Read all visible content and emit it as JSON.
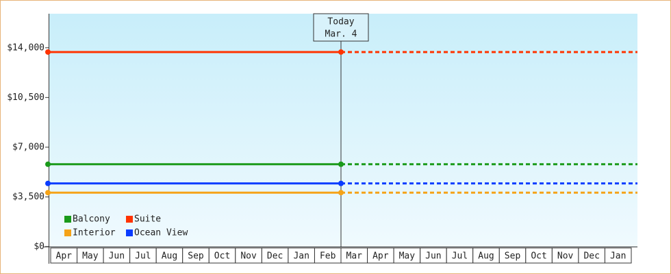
{
  "chart_data": {
    "type": "line",
    "categories": [
      "Apr",
      "May",
      "Jun",
      "Jul",
      "Aug",
      "Sep",
      "Oct",
      "Nov",
      "Dec",
      "Jan",
      "Feb",
      "Mar",
      "Apr",
      "May",
      "Jun",
      "Jul",
      "Aug",
      "Sep",
      "Oct",
      "Nov",
      "Dec",
      "Jan"
    ],
    "series": [
      {
        "name": "Balcony",
        "color": "#1a9a1a",
        "value": 5800
      },
      {
        "name": "Suite",
        "color": "#ff3300",
        "value": 13700
      },
      {
        "name": "Interior",
        "color": "#f5a318",
        "value": 3800
      },
      {
        "name": "Ocean View",
        "color": "#0a3cff",
        "value": 4450
      }
    ],
    "today": {
      "title": "Today",
      "date": "Mar. 4",
      "category_index": 11
    },
    "ylim": [
      0,
      16400
    ],
    "yticks": [
      {
        "value": 0,
        "label": "$0"
      },
      {
        "value": 3500,
        "label": "$3,500"
      },
      {
        "value": 7000,
        "label": "$7,000"
      },
      {
        "value": 10500,
        "label": "$10,500"
      },
      {
        "value": 14000,
        "label": "$14,000"
      }
    ]
  }
}
